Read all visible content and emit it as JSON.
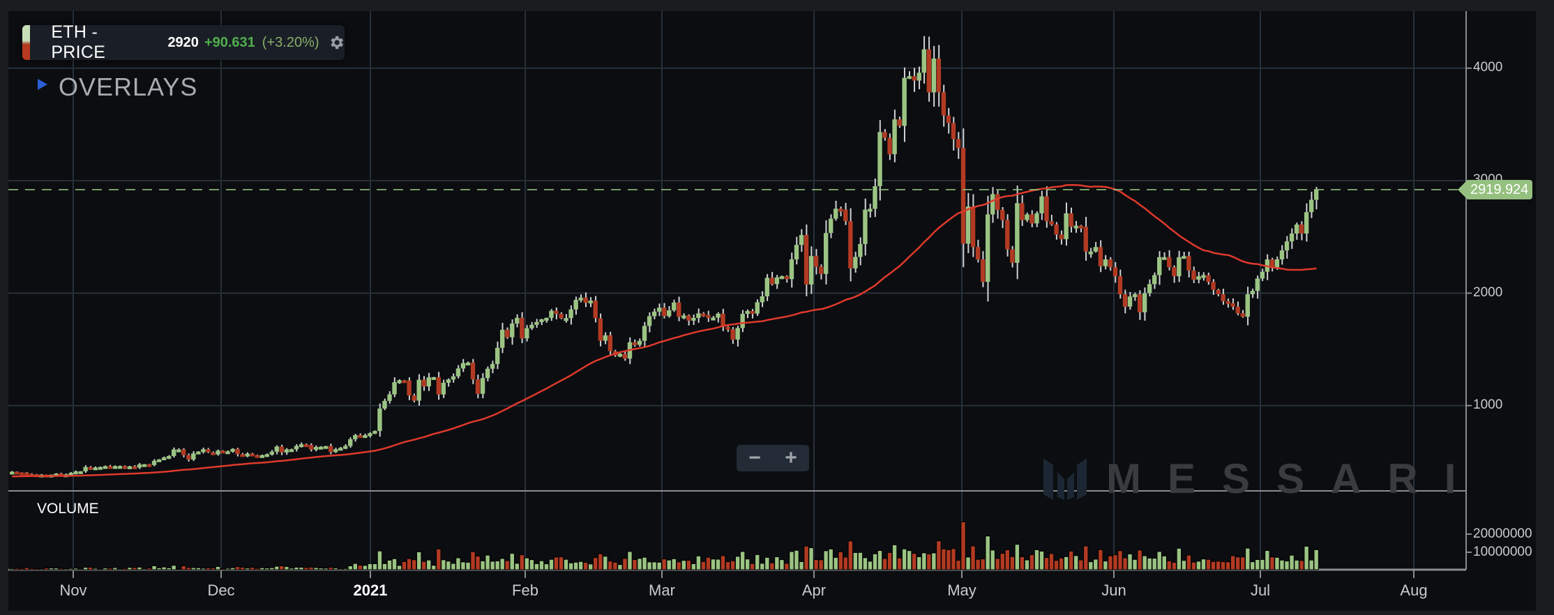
{
  "header": {
    "title": "ETH - PRICE",
    "last": "2920",
    "change": "+90.631",
    "change_pct": "(+3.20%)",
    "settings_icon": "gear-icon"
  },
  "overlays": {
    "label": "OVERLAYS",
    "icon": "triangle-right-icon"
  },
  "zoom_controls": {
    "minus": "−",
    "plus": "+"
  },
  "volume_pane": {
    "label": "VOLUME"
  },
  "watermark": {
    "text": "MESSARI"
  },
  "price_tag": {
    "value": "2919.924"
  },
  "y_axis": {
    "ticks": [
      "4000",
      "3000",
      "2000",
      "1000"
    ]
  },
  "volume_axis": {
    "ticks": [
      "20000000",
      "10000000"
    ]
  },
  "x_axis": {
    "ticks": [
      "Nov",
      "Dec",
      "2021",
      "Feb",
      "Mar",
      "Apr",
      "May",
      "Jun",
      "Jul",
      "Aug"
    ]
  },
  "colors": {
    "up": "#9bc483",
    "down": "#b23a22",
    "ma": "#e03a2c",
    "grid": "#27313c",
    "axis": "#8a8d90",
    "price_tag": "#95c07f"
  },
  "chart_data": {
    "type": "candlestick",
    "title": "ETH - PRICE",
    "start_date": "2020-10-23",
    "end_date": "2021-08-05",
    "x_tick_labels": [
      "Nov",
      "Dec",
      "2021",
      "Feb",
      "Mar",
      "Apr",
      "May",
      "Jun",
      "Jul",
      "Aug"
    ],
    "y_tick_labels": [
      1000,
      2000,
      3000,
      4000
    ],
    "ylim": [
      0,
      4400
    ],
    "last_price": 2919.924,
    "change": 90.631,
    "change_pct": 3.2,
    "overlay": "moving average (red line)",
    "volume_ticks": [
      10000000,
      20000000
    ],
    "closes": [
      412,
      406,
      404,
      393,
      389,
      381,
      386,
      382,
      386,
      396,
      383,
      388,
      402,
      414,
      416,
      454,
      436,
      450,
      454,
      462,
      451,
      462,
      463,
      447,
      460,
      449,
      477,
      479,
      472,
      509,
      522,
      539,
      552,
      610,
      610,
      560,
      521,
      575,
      591,
      612,
      584,
      566,
      600,
      587,
      593,
      615,
      568,
      554,
      573,
      560,
      545,
      559,
      568,
      590,
      636,
      583,
      611,
      612,
      641,
      656,
      650,
      610,
      632,
      634,
      640,
      587,
      612,
      624,
      641,
      701,
      738,
      729,
      737,
      754,
      774,
      974,
      1042,
      1100,
      1208,
      1225,
      1224,
      1090,
      1044,
      1230,
      1171,
      1251,
      1253,
      1099,
      1203,
      1232,
      1260,
      1330,
      1378,
      1382,
      1233,
      1105,
      1245,
      1328,
      1370,
      1514,
      1674,
      1608,
      1730,
      1780,
      1598,
      1688,
      1718,
      1743,
      1767,
      1780,
      1843,
      1816,
      1776,
      1778,
      1855,
      1940,
      1960,
      1914,
      1934,
      1777,
      1577,
      1625,
      1484,
      1446,
      1460,
      1418,
      1563,
      1541,
      1576,
      1708,
      1795,
      1836,
      1871,
      1795,
      1847,
      1917,
      1790,
      1801,
      1756,
      1780,
      1820,
      1806,
      1780,
      1782,
      1817,
      1700,
      1678,
      1587,
      1690,
      1816,
      1841,
      1818,
      1919,
      1972,
      2136,
      2080,
      2140,
      2150,
      2125,
      2300,
      2429,
      2517,
      2077,
      2330,
      2235,
      2171,
      2535,
      2662,
      2751,
      2742,
      2640,
      2220,
      2322,
      2437,
      2742,
      2750,
      2951,
      3432,
      3380,
      3235,
      3545,
      3487,
      3914,
      3930,
      3890,
      3960,
      4168,
      3785,
      4086,
      3786,
      3580,
      3512,
      3370,
      3290,
      2440,
      2770,
      2410,
      2300,
      2100,
      2700,
      2880,
      2740,
      2650,
      2390,
      2270,
      2800,
      2650,
      2700,
      2620,
      2710,
      2860,
      2640,
      2610,
      2520,
      2480,
      2710,
      2590,
      2600,
      2590,
      2370,
      2370,
      2410,
      2240,
      2300,
      2230,
      2150,
      1990,
      1880,
      1970,
      1990,
      1830,
      2000,
      2080,
      2160,
      2320,
      2320,
      2230,
      2150,
      2320,
      2330,
      2200,
      2120,
      2150,
      2160,
      2100,
      2030,
      1990,
      1930,
      1910,
      1880,
      1820,
      1790,
      1990,
      2020,
      2130,
      2190,
      2300,
      2230,
      2300,
      2380,
      2460,
      2530,
      2610,
      2530,
      2720,
      2830,
      2920
    ],
    "volume_max_approx": 28000000,
    "xlabel": "",
    "ylabel": ""
  }
}
